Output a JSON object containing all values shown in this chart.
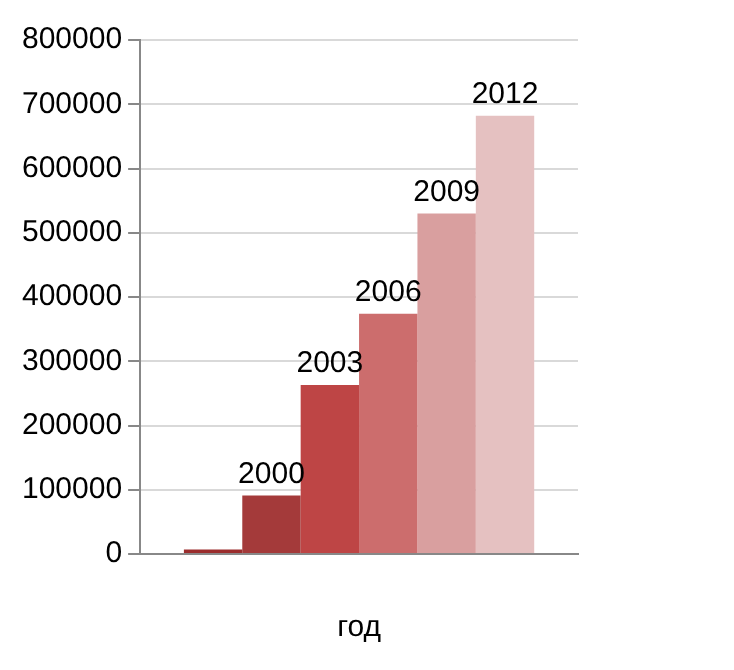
{
  "chart_data": {
    "type": "bar",
    "xlabel": "год",
    "categories": [
      null
    ],
    "series": [
      {
        "color": "#9b2d2d",
        "values": [
          7000
        ]
      },
      {
        "name": "2000",
        "color": "#a43a3a",
        "values": [
          91000
        ]
      },
      {
        "name": "2003",
        "color": "#be4545",
        "values": [
          263000
        ]
      },
      {
        "name": "2006",
        "color": "#cc6d6d",
        "values": [
          374000
        ]
      },
      {
        "name": "2009",
        "color": "#d99f9f",
        "values": [
          530000
        ]
      },
      {
        "name": "2012",
        "color": "#e5c1c1",
        "values": [
          682000
        ]
      }
    ],
    "ylim": [
      0,
      800000
    ],
    "yticks": [
      0,
      100000,
      200000,
      300000,
      400000,
      500000,
      600000,
      700000,
      800000
    ],
    "grid": "y",
    "legend": false
  }
}
